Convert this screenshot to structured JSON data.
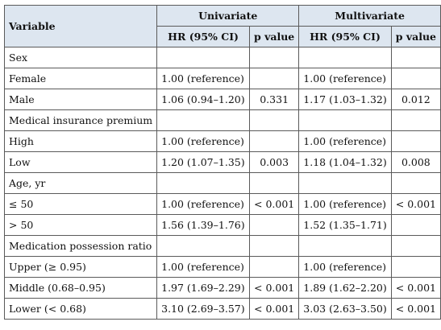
{
  "header": {
    "variable": "Variable",
    "univariate": "Univariate",
    "multivariate": "Multivariate",
    "hr_label": "HR (95% CI)",
    "p_label": "p value"
  },
  "rows": [
    {
      "variable": "Sex",
      "uni_hr": "",
      "uni_p": "",
      "multi_hr": "",
      "multi_p": ""
    },
    {
      "variable": "Female",
      "uni_hr": "1.00 (reference)",
      "uni_p": "",
      "multi_hr": "1.00 (reference)",
      "multi_p": ""
    },
    {
      "variable": "Male",
      "uni_hr": "1.06 (0.94–1.20)",
      "uni_p": "0.331",
      "multi_hr": "1.17 (1.03–1.32)",
      "multi_p": "0.012"
    },
    {
      "variable": "Medical insurance premium",
      "uni_hr": "",
      "uni_p": "",
      "multi_hr": "",
      "multi_p": ""
    },
    {
      "variable": "High",
      "uni_hr": "1.00 (reference)",
      "uni_p": "",
      "multi_hr": "1.00 (reference)",
      "multi_p": ""
    },
    {
      "variable": "Low",
      "uni_hr": "1.20 (1.07–1.35)",
      "uni_p": "0.003",
      "multi_hr": "1.18 (1.04–1.32)",
      "multi_p": "0.008"
    },
    {
      "variable": "Age, yr",
      "uni_hr": "",
      "uni_p": "",
      "multi_hr": "",
      "multi_p": ""
    },
    {
      "variable": "≤ 50",
      "uni_hr": "1.00 (reference)",
      "uni_p": "< 0.001",
      "multi_hr": "1.00 (reference)",
      "multi_p": "< 0.001"
    },
    {
      "variable": "> 50",
      "uni_hr": "1.56 (1.39–1.76)",
      "uni_p": "",
      "multi_hr": "1.52 (1.35–1.71)",
      "multi_p": ""
    },
    {
      "variable": "Medication possession ratio",
      "uni_hr": "",
      "uni_p": "",
      "multi_hr": "",
      "multi_p": ""
    },
    {
      "variable": "Upper (≥ 0.95)",
      "uni_hr": "1.00 (reference)",
      "uni_p": "",
      "multi_hr": "1.00 (reference)",
      "multi_p": ""
    },
    {
      "variable": "Middle (0.68–0.95)",
      "uni_hr": "1.97 (1.69–2.29)",
      "uni_p": "< 0.001",
      "multi_hr": "1.89 (1.62–2.20)",
      "multi_p": "< 0.001"
    },
    {
      "variable": "Lower (< 0.68)",
      "uni_hr": "3.10 (2.69–3.57)",
      "uni_p": "< 0.001",
      "multi_hr": "3.03 (2.63–3.50)",
      "multi_p": "< 0.001"
    }
  ]
}
